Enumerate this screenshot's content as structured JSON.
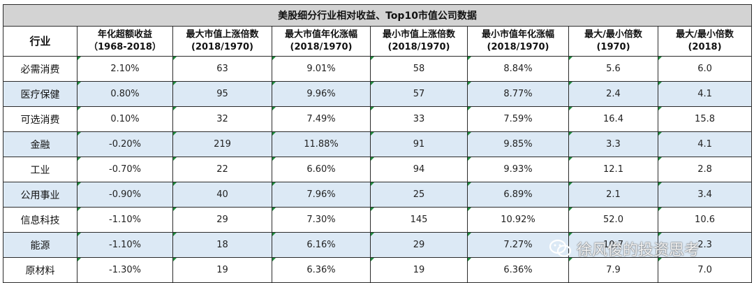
{
  "table": {
    "title": "美股细分行业相对收益、Top10市值公司数据",
    "headers": [
      {
        "l1": "行业",
        "l2": ""
      },
      {
        "l1": "年化超额收益",
        "l2": "（1968-2018）"
      },
      {
        "l1": "最大市值上涨倍数",
        "l2": "(2018/1970)"
      },
      {
        "l1": "最大市值年化涨幅",
        "l2": "(2018/1970)"
      },
      {
        "l1": "最小市值上涨倍数",
        "l2": "(2018/1970)"
      },
      {
        "l1": "最小市值年化涨幅",
        "l2": "(2018/1970)"
      },
      {
        "l1": "最大/最小倍数",
        "l2": "(1970)"
      },
      {
        "l1": "最大/最小倍数",
        "l2": "(2018)"
      }
    ],
    "rows": [
      [
        "必需消费",
        "2.10%",
        "63",
        "9.01%",
        "58",
        "8.84%",
        "5.6",
        "6.0"
      ],
      [
        "医疗保健",
        "0.80%",
        "95",
        "9.96%",
        "57",
        "8.77%",
        "2.4",
        "4.1"
      ],
      [
        "可选消费",
        "0.10%",
        "32",
        "7.49%",
        "33",
        "7.59%",
        "16.4",
        "15.8"
      ],
      [
        "金融",
        "-0.20%",
        "219",
        "11.88%",
        "91",
        "9.85%",
        "3.3",
        "4.1"
      ],
      [
        "工业",
        "-0.70%",
        "22",
        "6.60%",
        "94",
        "9.93%",
        "12.1",
        "2.8"
      ],
      [
        "公用事业",
        "-0.90%",
        "40",
        "7.96%",
        "25",
        "6.89%",
        "2.1",
        "3.4"
      ],
      [
        "信息科技",
        "-1.10%",
        "29",
        "7.30%",
        "145",
        "10.92%",
        "52.0",
        "10.6"
      ],
      [
        "能源",
        "-1.10%",
        "18",
        "6.16%",
        "29",
        "7.27%",
        "10.7",
        "2.3"
      ],
      [
        "原材料",
        "-1.30%",
        "19",
        "6.36%",
        "19",
        "6.36%",
        "7.9",
        "7.0"
      ]
    ]
  },
  "watermark": {
    "text": "徐风俊的投资思考",
    "icon": "wechat-icon"
  },
  "colors": {
    "title_bg": "#d3d3d3",
    "alt_row_bg": "#dce9f5",
    "border": "#2b2b2b",
    "cell_marker": "#1e8a3c"
  }
}
